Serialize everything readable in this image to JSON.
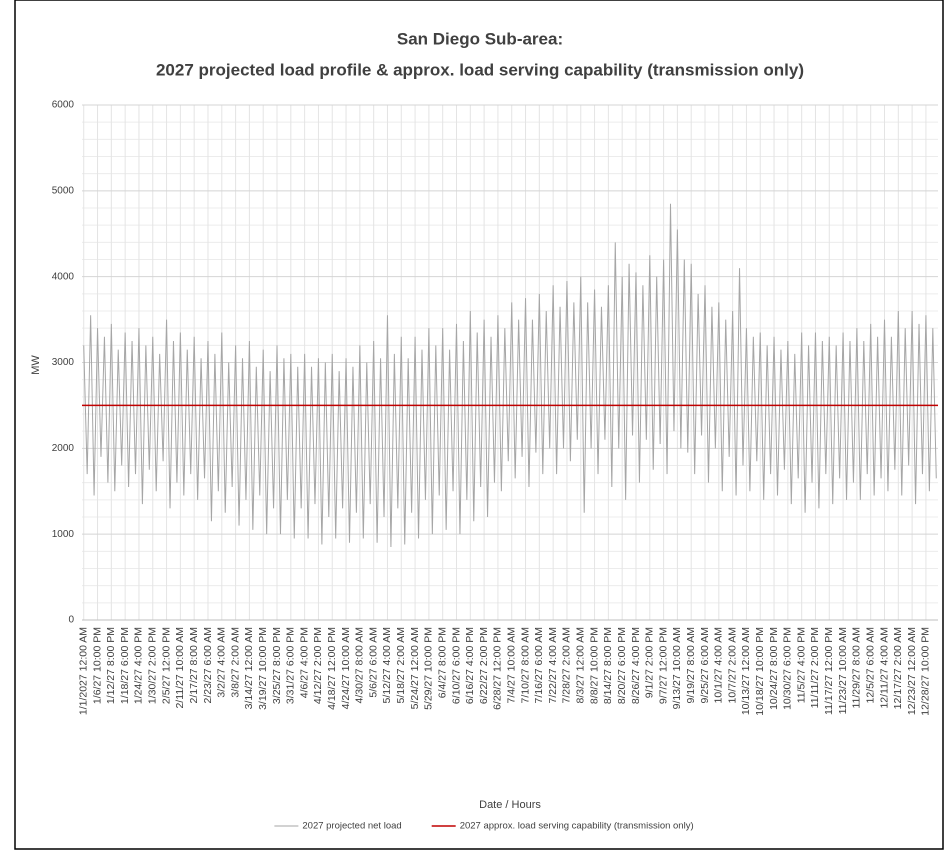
{
  "chart_data": {
    "type": "line",
    "title": "San Diego Sub-area:",
    "subtitle": "2027 projected load profile & approx. load serving capability (transmission only)",
    "x_label": "Date / Hours",
    "y_label": "MW",
    "categories": [
      "1/1/2027 12:00 AM",
      null,
      null,
      null,
      "1/6/27 10:00 PM",
      null,
      null,
      null,
      "1/12/27 8:00 PM",
      null,
      null,
      null,
      "1/18/27 6:00 PM",
      null,
      null,
      null,
      "1/24/27 4:00 PM",
      null,
      null,
      null,
      "1/30/27 2:00 PM",
      null,
      null,
      null,
      "2/5/27 12:00 PM",
      null,
      null,
      null,
      "2/11/27 10:00 AM",
      null,
      null,
      null,
      "2/17/27 8:00 AM",
      null,
      null,
      null,
      "2/23/27 6:00 AM",
      null,
      null,
      null,
      "3/2/27 4:00 AM",
      null,
      null,
      null,
      "3/8/27 2:00 AM",
      null,
      null,
      null,
      "3/14/27 12:00 AM",
      null,
      null,
      null,
      "3/19/27 10:00 PM",
      null,
      null,
      null,
      "3/25/27 8:00 PM",
      null,
      null,
      null,
      "3/31/27 6:00 PM",
      null,
      null,
      null,
      "4/6/27 4:00 PM",
      null,
      null,
      null,
      "4/12/27 2:00 PM",
      null,
      null,
      null,
      "4/18/27 12:00 PM",
      null,
      null,
      null,
      "4/24/27 10:00 AM",
      null,
      null,
      null,
      "4/30/27 8:00 AM",
      null,
      null,
      null,
      "5/6/27 6:00 AM",
      null,
      null,
      null,
      "5/12/27 4:00 AM",
      null,
      null,
      null,
      "5/18/27 2:00 AM",
      null,
      null,
      null,
      "5/24/27 12:00 AM",
      null,
      null,
      null,
      "5/29/27 10:00 PM",
      null,
      null,
      null,
      "6/4/27 8:00 PM",
      null,
      null,
      null,
      "6/10/27 6:00 PM",
      null,
      null,
      null,
      "6/16/27 4:00 PM",
      null,
      null,
      null,
      "6/22/27 2:00 PM",
      null,
      null,
      null,
      "6/28/27 12:00 PM",
      null,
      null,
      null,
      "7/4/27 10:00 AM",
      null,
      null,
      null,
      "7/10/27 8:00 AM",
      null,
      null,
      null,
      "7/16/27 6:00 AM",
      null,
      null,
      null,
      "7/22/27 4:00 AM",
      null,
      null,
      null,
      "7/28/27 2:00 AM",
      null,
      null,
      null,
      "8/3/27 12:00 AM",
      null,
      null,
      null,
      "8/8/27 10:00 PM",
      null,
      null,
      null,
      "8/14/27 8:00 PM",
      null,
      null,
      null,
      "8/20/27 6:00 PM",
      null,
      null,
      null,
      "8/26/27 4:00 PM",
      null,
      null,
      null,
      "9/1/27 2:00 PM",
      null,
      null,
      null,
      "9/7/27 12:00 PM",
      null,
      null,
      null,
      "9/13/27 10:00 AM",
      null,
      null,
      null,
      "9/19/27 8:00 AM",
      null,
      null,
      null,
      "9/25/27 6:00 AM",
      null,
      null,
      null,
      "10/1/27 4:00 AM",
      null,
      null,
      null,
      "10/7/27 2:00 AM",
      null,
      null,
      null,
      "10/13/27 12:00 AM",
      null,
      null,
      null,
      "10/18/27 10:00 PM",
      null,
      null,
      null,
      "10/24/27 8:00 PM",
      null,
      null,
      null,
      "10/30/27 6:00 PM",
      null,
      null,
      null,
      "11/5/27 4:00 PM",
      null,
      null,
      null,
      "11/11/27 2:00 PM",
      null,
      null,
      null,
      "11/17/27 12:00 PM",
      null,
      null,
      null,
      "11/23/27 10:00 AM",
      null,
      null,
      null,
      "11/29/27 8:00 AM",
      null,
      null,
      null,
      "12/5/27 6:00 AM",
      null,
      null,
      null,
      "12/11/27 4:00 AM",
      null,
      null,
      null,
      "12/17/27 2:00 AM",
      null,
      null,
      null,
      "12/23/27 12:00 AM",
      null,
      null,
      null,
      "12/28/27 10:00 PM",
      null,
      null,
      null
    ],
    "series": [
      {
        "name": "2027 projected net load",
        "color": "#a6a6a6",
        "values": [
          3200,
          1700,
          3550,
          1450,
          3400,
          1900,
          3300,
          1600,
          3450,
          1500,
          3150,
          1800,
          3350,
          1550,
          3250,
          1700,
          3400,
          1350,
          3200,
          1750,
          3300,
          1500,
          3100,
          1850,
          3500,
          1300,
          3250,
          1600,
          3350,
          1450,
          3150,
          1700,
          3300,
          1400,
          3050,
          1650,
          3250,
          1150,
          3100,
          1500,
          3350,
          1250,
          3000,
          1550,
          3200,
          1100,
          3050,
          1400,
          3250,
          1050,
          2950,
          1450,
          3150,
          1000,
          2900,
          1300,
          3200,
          1000,
          3050,
          1400,
          3100,
          950,
          2950,
          1300,
          3100,
          950,
          2950,
          1350,
          3050,
          880,
          3000,
          1200,
          3100,
          950,
          2900,
          1300,
          3050,
          900,
          2950,
          1250,
          3200,
          950,
          3000,
          1350,
          3250,
          900,
          3050,
          1200,
          3550,
          850,
          3100,
          1300,
          3300,
          880,
          3050,
          1250,
          3300,
          950,
          3150,
          1400,
          3400,
          1000,
          3200,
          1450,
          3400,
          1050,
          3150,
          1500,
          3450,
          1000,
          3250,
          1400,
          3600,
          1150,
          3350,
          1550,
          3500,
          1200,
          3300,
          1600,
          3550,
          1500,
          3400,
          1850,
          3700,
          1650,
          3500,
          1900,
          3750,
          1550,
          3500,
          1950,
          3800,
          1700,
          3600,
          2000,
          3900,
          1700,
          3650,
          2000,
          3950,
          1850,
          3700,
          2100,
          4000,
          1250,
          3700,
          2000,
          3850,
          1700,
          3650,
          2100,
          3900,
          1550,
          4400,
          2000,
          4000,
          1400,
          4150,
          2150,
          4050,
          1600,
          3900,
          2100,
          4250,
          1750,
          4000,
          2050,
          4200,
          1700,
          4850,
          2200,
          4550,
          2000,
          4200,
          1950,
          4150,
          1700,
          3800,
          2150,
          3900,
          1600,
          3650,
          2000,
          3700,
          1500,
          3500,
          1900,
          3600,
          1450,
          4100,
          1800,
          3400,
          1500,
          3300,
          1850,
          3350,
          1400,
          3200,
          1700,
          3300,
          1450,
          3150,
          1750,
          3250,
          1350,
          3100,
          1650,
          3350,
          1250,
          3200,
          1600,
          3350,
          1300,
          3250,
          1700,
          3300,
          1350,
          3200,
          1650,
          3350,
          1400,
          3250,
          1600,
          3400,
          1400,
          3250,
          1700,
          3450,
          1450,
          3300,
          1650,
          3500,
          1500,
          3300,
          1750,
          3600,
          1450,
          3400,
          1800,
          3600,
          1350,
          3450,
          1700,
          3550,
          1500,
          3400,
          1650
        ]
      }
    ],
    "reference_lines": [
      {
        "name": "2027 approx. load serving capability (transmission only)",
        "color": "#c00000",
        "value": 2500
      }
    ],
    "ylim": [
      0,
      6000
    ],
    "yticks": [
      0,
      1000,
      2000,
      3000,
      4000,
      5000,
      6000
    ],
    "minor_yticks": [
      200,
      400,
      600,
      800,
      1200,
      1400,
      1600,
      1800,
      2200,
      2400,
      2600,
      2800,
      3200,
      3400,
      3600,
      3800,
      4200,
      4400,
      4600,
      4800,
      5200,
      5400,
      5600,
      5800
    ],
    "grid": true,
    "legend": "bottom"
  }
}
